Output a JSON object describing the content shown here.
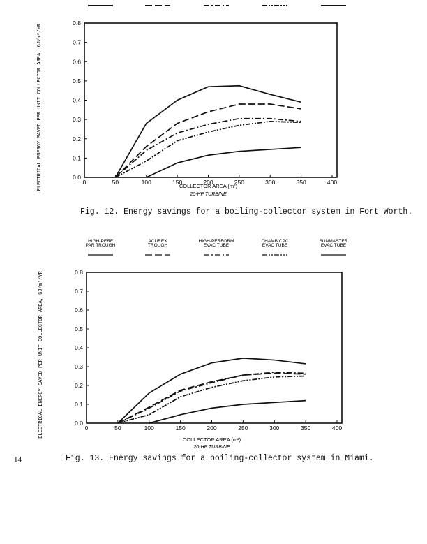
{
  "page_number": "14",
  "chart_data": [
    {
      "type": "line",
      "caption": "Fig. 12.  Energy savings for a boiling-collector system in Fort Worth.",
      "xlabel": "COLLECTOR AREA (m²)",
      "xsublabel": "20-HP TURBINE",
      "ylabel": "ELECTRICAL ENERGY SAVED PER UNIT COLLECTOR AREA, GJ/m²/YR",
      "xlim": [
        0,
        400
      ],
      "ylim": [
        0,
        0.8
      ],
      "xticks": [
        "0",
        "50",
        "100",
        "150",
        "200",
        "250",
        "300",
        "350",
        "400"
      ],
      "yticks": [
        "0.0",
        "0.1",
        "0.2",
        "0.3",
        "0.4",
        "0.5",
        "0.6",
        "0.7",
        "0.8"
      ],
      "legend_labels_visible": false,
      "grid": false,
      "series": [
        {
          "style": "solid",
          "x": [
            50,
            100,
            150,
            200,
            250,
            300,
            350
          ],
          "y": [
            0,
            0.28,
            0.4,
            0.47,
            0.475,
            0.43,
            0.39
          ]
        },
        {
          "style": "long-dash",
          "x": [
            50,
            100,
            150,
            200,
            250,
            300,
            350
          ],
          "y": [
            0,
            0.16,
            0.28,
            0.34,
            0.38,
            0.38,
            0.355
          ]
        },
        {
          "style": "dash-dot",
          "x": [
            50,
            100,
            150,
            200,
            250,
            300,
            350
          ],
          "y": [
            0,
            0.14,
            0.23,
            0.275,
            0.305,
            0.305,
            0.29
          ]
        },
        {
          "style": "dash-dot-dot",
          "x": [
            50,
            100,
            150,
            200,
            250,
            300,
            350
          ],
          "y": [
            0,
            0.085,
            0.19,
            0.235,
            0.27,
            0.29,
            0.285
          ]
        },
        {
          "style": "solid",
          "x": [
            100,
            150,
            200,
            250,
            300,
            350
          ],
          "y": [
            0,
            0.075,
            0.115,
            0.135,
            0.145,
            0.155
          ]
        }
      ]
    },
    {
      "type": "line",
      "caption": "Fig. 13.  Energy savings for a boiling-collector system in Miami.",
      "xlabel": "COLLECTOR AREA (m²)",
      "xsublabel": "20-HP TURBINE",
      "ylabel": "ELECTRICAL ENERGY SAVED PER UNIT COLLECTOR AREA, GJ/m²/YR",
      "xlim": [
        0,
        400
      ],
      "ylim": [
        0,
        0.8
      ],
      "xticks": [
        "0",
        "50",
        "100",
        "150",
        "200",
        "250",
        "300",
        "350",
        "400"
      ],
      "yticks": [
        "0.0",
        "0.1",
        "0.2",
        "0.3",
        "0.4",
        "0.5",
        "0.6",
        "0.7",
        "0.8"
      ],
      "legend_labels_visible": true,
      "grid": false,
      "series": [
        {
          "name": [
            "HIGH-PERF",
            "PAR TROUGH"
          ],
          "style": "solid",
          "x": [
            50,
            100,
            150,
            200,
            250,
            300,
            350
          ],
          "y": [
            0,
            0.16,
            0.26,
            0.32,
            0.345,
            0.335,
            0.315
          ]
        },
        {
          "name": [
            "ACUREX",
            "TROUGH"
          ],
          "style": "long-dash",
          "x": [
            50,
            100,
            150,
            200,
            250,
            300,
            350
          ],
          "y": [
            0,
            0.085,
            0.175,
            0.22,
            0.255,
            0.265,
            0.26
          ]
        },
        {
          "name": [
            "HIGH-PERFORM",
            "EVAC TUBE"
          ],
          "style": "dash-dot",
          "x": [
            50,
            100,
            150,
            200,
            250,
            300,
            350
          ],
          "y": [
            0,
            0.08,
            0.17,
            0.215,
            0.255,
            0.27,
            0.265
          ]
        },
        {
          "name": [
            "CHAMB CPC",
            "EVAC TUBE"
          ],
          "style": "dash-dot-dot",
          "x": [
            50,
            100,
            150,
            200,
            250,
            300,
            350
          ],
          "y": [
            0,
            0.045,
            0.14,
            0.19,
            0.225,
            0.245,
            0.25
          ]
        },
        {
          "name": [
            "SUNMASTER",
            "EVAC TUBE"
          ],
          "style": "solid",
          "x": [
            100,
            150,
            200,
            250,
            300,
            350
          ],
          "y": [
            0,
            0.045,
            0.08,
            0.1,
            0.11,
            0.12
          ]
        }
      ]
    }
  ]
}
